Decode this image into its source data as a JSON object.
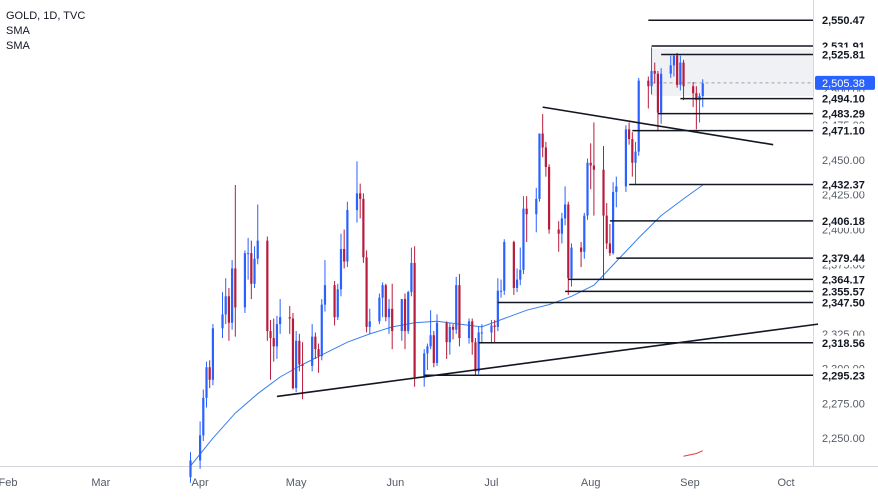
{
  "legend": {
    "symbol": "GOLD, 1D, TVC",
    "indicator_1": "SMA",
    "indicator_2": "SMA"
  },
  "chart_data": {
    "type": "candlestick",
    "title": "GOLD, 1D, TVC",
    "xlabel": "",
    "ylabel": "",
    "ylim": [
      2230,
      2565
    ],
    "y_ticks": [
      "2,250.00",
      "2,275.00",
      "2,300.00",
      "2,325.00",
      "2,350.00",
      "2,375.00",
      "2,400.00",
      "2,425.00",
      "2,450.00",
      "2,475.00",
      "2,500.00",
      "2,525.00",
      "2,550.00"
    ],
    "x_labels": [
      "Feb",
      "Mar",
      "Apr",
      "May",
      "Jun",
      "Jul",
      "Aug",
      "Sep",
      "Oct"
    ],
    "current_price": "2,505.38",
    "price_labels": [
      "2,550.47",
      "2,531.91",
      "2,525.81",
      "2,505.38",
      "2,494.10",
      "2,483.29",
      "2,471.10",
      "2,432.37",
      "2,406.18",
      "2,379.44",
      "2,364.17",
      "2,355.57",
      "2,347.50",
      "2,318.56",
      "2,295.23"
    ],
    "levels": [
      {
        "label": "2,550.47",
        "value": 2550.47,
        "x_from": "2024-08-19"
      },
      {
        "label": "2,531.91",
        "value": 2531.91,
        "x_from": "2024-08-20"
      },
      {
        "label": "2,525.81",
        "value": 2525.81,
        "x_from": "2024-08-23"
      },
      {
        "label": "2,494.10",
        "value": 2494.1,
        "x_from": "2024-08-29"
      },
      {
        "label": "2,483.29",
        "value": 2483.29,
        "x_from": "2024-08-22"
      },
      {
        "label": "2,471.10",
        "value": 2471.1,
        "x_from": "2024-08-14"
      },
      {
        "label": "2,432.37",
        "value": 2432.37,
        "x_from": "2024-08-13"
      },
      {
        "label": "2,406.18",
        "value": 2406.18,
        "x_from": "2024-08-07"
      },
      {
        "label": "2,379.44",
        "value": 2379.44,
        "x_from": "2024-08-09"
      },
      {
        "label": "2,364.17",
        "value": 2364.17,
        "x_from": "2024-07-25"
      },
      {
        "label": "2,355.57",
        "value": 2355.57,
        "x_from": "2024-07-24"
      },
      {
        "label": "2,347.50",
        "value": 2347.5,
        "x_from": "2024-07-03"
      },
      {
        "label": "2,318.56",
        "value": 2318.56,
        "x_from": "2024-06-27"
      },
      {
        "label": "2,295.23",
        "value": 2295.23,
        "x_from": "2024-06-10"
      }
    ],
    "trendlines": [
      {
        "from": {
          "date": "2024-04-25",
          "price": 2280
        },
        "to": {
          "date": "2024-10-11",
          "price": 2332
        }
      },
      {
        "from": {
          "date": "2024-07-17",
          "price": 2488
        },
        "to": {
          "date": "2024-09-27",
          "price": 2461
        }
      }
    ],
    "consolidation_box": {
      "x_from": "2024-08-20",
      "x_to": "2024-10-07",
      "price_top": 2530,
      "price_bottom": 2496
    },
    "colors": {
      "up": "#2962ff",
      "down": "#b71c3c",
      "sma_1": "#3a7ef0",
      "sma_2": "#e04040",
      "price_label_bg": "#2962ff"
    },
    "candles": [
      {
        "d": "2024-03-29",
        "o": 2222,
        "h": 2240,
        "l": 2218,
        "c": 2234
      },
      {
        "d": "2024-04-01",
        "o": 2234,
        "h": 2262,
        "l": 2228,
        "c": 2252
      },
      {
        "d": "2024-04-02",
        "o": 2252,
        "h": 2285,
        "l": 2248,
        "c": 2279
      },
      {
        "d": "2024-04-03",
        "o": 2279,
        "h": 2305,
        "l": 2272,
        "c": 2301
      },
      {
        "d": "2024-04-04",
        "o": 2301,
        "h": 2306,
        "l": 2286,
        "c": 2292
      },
      {
        "d": "2024-04-05",
        "o": 2292,
        "h": 2332,
        "l": 2288,
        "c": 2329
      },
      {
        "d": "2024-04-08",
        "o": 2329,
        "h": 2355,
        "l": 2322,
        "c": 2339
      },
      {
        "d": "2024-04-09",
        "o": 2339,
        "h": 2365,
        "l": 2332,
        "c": 2352
      },
      {
        "d": "2024-04-10",
        "o": 2352,
        "h": 2358,
        "l": 2320,
        "c": 2333
      },
      {
        "d": "2024-04-11",
        "o": 2333,
        "h": 2378,
        "l": 2328,
        "c": 2372
      },
      {
        "d": "2024-04-12",
        "o": 2372,
        "h": 2432,
        "l": 2323,
        "c": 2344
      },
      {
        "d": "2024-04-15",
        "o": 2344,
        "h": 2385,
        "l": 2340,
        "c": 2383
      },
      {
        "d": "2024-04-16",
        "o": 2383,
        "h": 2394,
        "l": 2364,
        "c": 2383
      },
      {
        "d": "2024-04-17",
        "o": 2383,
        "h": 2392,
        "l": 2350,
        "c": 2361
      },
      {
        "d": "2024-04-18",
        "o": 2361,
        "h": 2388,
        "l": 2358,
        "c": 2379
      },
      {
        "d": "2024-04-19",
        "o": 2379,
        "h": 2418,
        "l": 2375,
        "c": 2392
      },
      {
        "d": "2024-04-22",
        "o": 2392,
        "h": 2395,
        "l": 2320,
        "c": 2327
      },
      {
        "d": "2024-04-23",
        "o": 2327,
        "h": 2335,
        "l": 2292,
        "c": 2322
      },
      {
        "d": "2024-04-24",
        "o": 2322,
        "h": 2336,
        "l": 2305,
        "c": 2316
      },
      {
        "d": "2024-04-25",
        "o": 2316,
        "h": 2338,
        "l": 2307,
        "c": 2332
      },
      {
        "d": "2024-04-26",
        "o": 2332,
        "h": 2350,
        "l": 2325,
        "c": 2337
      },
      {
        "d": "2024-04-29",
        "o": 2337,
        "h": 2345,
        "l": 2325,
        "c": 2336
      },
      {
        "d": "2024-04-30",
        "o": 2336,
        "h": 2340,
        "l": 2285,
        "c": 2286
      },
      {
        "d": "2024-05-01",
        "o": 2286,
        "h": 2327,
        "l": 2283,
        "c": 2320
      },
      {
        "d": "2024-05-02",
        "o": 2320,
        "h": 2325,
        "l": 2298,
        "c": 2303
      },
      {
        "d": "2024-05-03",
        "o": 2303,
        "h": 2319,
        "l": 2278,
        "c": 2302
      },
      {
        "d": "2024-05-06",
        "o": 2302,
        "h": 2332,
        "l": 2298,
        "c": 2323
      },
      {
        "d": "2024-05-07",
        "o": 2323,
        "h": 2326,
        "l": 2307,
        "c": 2314
      },
      {
        "d": "2024-05-08",
        "o": 2314,
        "h": 2318,
        "l": 2297,
        "c": 2309
      },
      {
        "d": "2024-05-09",
        "o": 2309,
        "h": 2350,
        "l": 2306,
        "c": 2346
      },
      {
        "d": "2024-05-10",
        "o": 2346,
        "h": 2378,
        "l": 2341,
        "c": 2360
      },
      {
        "d": "2024-05-13",
        "o": 2360,
        "h": 2363,
        "l": 2331,
        "c": 2337
      },
      {
        "d": "2024-05-14",
        "o": 2337,
        "h": 2361,
        "l": 2335,
        "c": 2357
      },
      {
        "d": "2024-05-15",
        "o": 2357,
        "h": 2397,
        "l": 2352,
        "c": 2386
      },
      {
        "d": "2024-05-16",
        "o": 2386,
        "h": 2400,
        "l": 2372,
        "c": 2377
      },
      {
        "d": "2024-05-17",
        "o": 2377,
        "h": 2420,
        "l": 2373,
        "c": 2414
      },
      {
        "d": "2024-05-20",
        "o": 2414,
        "h": 2449,
        "l": 2405,
        "c": 2426
      },
      {
        "d": "2024-05-21",
        "o": 2426,
        "h": 2433,
        "l": 2408,
        "c": 2422
      },
      {
        "d": "2024-05-22",
        "o": 2422,
        "h": 2426,
        "l": 2376,
        "c": 2380
      },
      {
        "d": "2024-05-23",
        "o": 2380,
        "h": 2385,
        "l": 2326,
        "c": 2330
      },
      {
        "d": "2024-05-24",
        "o": 2330,
        "h": 2343,
        "l": 2325,
        "c": 2334
      },
      {
        "d": "2024-05-27",
        "o": 2334,
        "h": 2354,
        "l": 2332,
        "c": 2351
      },
      {
        "d": "2024-05-28",
        "o": 2351,
        "h": 2362,
        "l": 2337,
        "c": 2360
      },
      {
        "d": "2024-05-29",
        "o": 2360,
        "h": 2361,
        "l": 2334,
        "c": 2337
      },
      {
        "d": "2024-05-30",
        "o": 2337,
        "h": 2350,
        "l": 2325,
        "c": 2343
      },
      {
        "d": "2024-05-31",
        "o": 2343,
        "h": 2361,
        "l": 2314,
        "c": 2327
      },
      {
        "d": "2024-06-03",
        "o": 2327,
        "h": 2350,
        "l": 2320,
        "c": 2350
      },
      {
        "d": "2024-06-04",
        "o": 2350,
        "h": 2354,
        "l": 2314,
        "c": 2327
      },
      {
        "d": "2024-06-05",
        "o": 2327,
        "h": 2356,
        "l": 2325,
        "c": 2355
      },
      {
        "d": "2024-06-06",
        "o": 2355,
        "h": 2387,
        "l": 2352,
        "c": 2376
      },
      {
        "d": "2024-06-07",
        "o": 2376,
        "h": 2388,
        "l": 2287,
        "c": 2294
      },
      {
        "d": "2024-06-10",
        "o": 2294,
        "h": 2314,
        "l": 2287,
        "c": 2311
      },
      {
        "d": "2024-06-11",
        "o": 2311,
        "h": 2318,
        "l": 2299,
        "c": 2316
      },
      {
        "d": "2024-06-12",
        "o": 2316,
        "h": 2342,
        "l": 2314,
        "c": 2324
      },
      {
        "d": "2024-06-13",
        "o": 2324,
        "h": 2327,
        "l": 2301,
        "c": 2304
      },
      {
        "d": "2024-06-14",
        "o": 2304,
        "h": 2339,
        "l": 2302,
        "c": 2333
      },
      {
        "d": "2024-06-17",
        "o": 2333,
        "h": 2334,
        "l": 2307,
        "c": 2319
      },
      {
        "d": "2024-06-18",
        "o": 2319,
        "h": 2333,
        "l": 2310,
        "c": 2330
      },
      {
        "d": "2024-06-19",
        "o": 2330,
        "h": 2332,
        "l": 2321,
        "c": 2328
      },
      {
        "d": "2024-06-20",
        "o": 2328,
        "h": 2366,
        "l": 2325,
        "c": 2360
      },
      {
        "d": "2024-06-21",
        "o": 2360,
        "h": 2368,
        "l": 2316,
        "c": 2322
      },
      {
        "d": "2024-06-24",
        "o": 2322,
        "h": 2336,
        "l": 2318,
        "c": 2334
      },
      {
        "d": "2024-06-25",
        "o": 2334,
        "h": 2336,
        "l": 2310,
        "c": 2319
      },
      {
        "d": "2024-06-26",
        "o": 2319,
        "h": 2322,
        "l": 2295,
        "c": 2298
      },
      {
        "d": "2024-06-27",
        "o": 2298,
        "h": 2330,
        "l": 2296,
        "c": 2326
      },
      {
        "d": "2024-06-28",
        "o": 2326,
        "h": 2332,
        "l": 2318,
        "c": 2326
      },
      {
        "d": "2024-07-01",
        "o": 2326,
        "h": 2335,
        "l": 2318,
        "c": 2331
      },
      {
        "d": "2024-07-02",
        "o": 2331,
        "h": 2335,
        "l": 2319,
        "c": 2330
      },
      {
        "d": "2024-07-03",
        "o": 2330,
        "h": 2365,
        "l": 2327,
        "c": 2356
      },
      {
        "d": "2024-07-04",
        "o": 2356,
        "h": 2364,
        "l": 2351,
        "c": 2356
      },
      {
        "d": "2024-07-05",
        "o": 2356,
        "h": 2393,
        "l": 2353,
        "c": 2391
      },
      {
        "d": "2024-07-08",
        "o": 2391,
        "h": 2392,
        "l": 2353,
        "c": 2358
      },
      {
        "d": "2024-07-09",
        "o": 2358,
        "h": 2372,
        "l": 2355,
        "c": 2364
      },
      {
        "d": "2024-07-10",
        "o": 2364,
        "h": 2387,
        "l": 2360,
        "c": 2371
      },
      {
        "d": "2024-07-11",
        "o": 2371,
        "h": 2424,
        "l": 2368,
        "c": 2415
      },
      {
        "d": "2024-07-12",
        "o": 2415,
        "h": 2424,
        "l": 2391,
        "c": 2411
      },
      {
        "d": "2024-07-15",
        "o": 2411,
        "h": 2430,
        "l": 2398,
        "c": 2422
      },
      {
        "d": "2024-07-16",
        "o": 2422,
        "h": 2469,
        "l": 2420,
        "c": 2469
      },
      {
        "d": "2024-07-17",
        "o": 2469,
        "h": 2483,
        "l": 2452,
        "c": 2459
      },
      {
        "d": "2024-07-18",
        "o": 2459,
        "h": 2463,
        "l": 2438,
        "c": 2445
      },
      {
        "d": "2024-07-19",
        "o": 2445,
        "h": 2447,
        "l": 2397,
        "c": 2400
      },
      {
        "d": "2024-07-22",
        "o": 2400,
        "h": 2406,
        "l": 2384,
        "c": 2397
      },
      {
        "d": "2024-07-23",
        "o": 2397,
        "h": 2412,
        "l": 2390,
        "c": 2408
      },
      {
        "d": "2024-07-24",
        "o": 2408,
        "h": 2431,
        "l": 2403,
        "c": 2418
      },
      {
        "d": "2024-07-25",
        "o": 2418,
        "h": 2420,
        "l": 2353,
        "c": 2365
      },
      {
        "d": "2024-07-26",
        "o": 2365,
        "h": 2390,
        "l": 2359,
        "c": 2387
      },
      {
        "d": "2024-07-29",
        "o": 2387,
        "h": 2391,
        "l": 2373,
        "c": 2384
      },
      {
        "d": "2024-07-30",
        "o": 2384,
        "h": 2412,
        "l": 2379,
        "c": 2410
      },
      {
        "d": "2024-07-31",
        "o": 2410,
        "h": 2451,
        "l": 2407,
        "c": 2448
      },
      {
        "d": "2024-08-01",
        "o": 2448,
        "h": 2462,
        "l": 2429,
        "c": 2446
      },
      {
        "d": "2024-08-02",
        "o": 2446,
        "h": 2477,
        "l": 2410,
        "c": 2443
      },
      {
        "d": "2024-08-05",
        "o": 2443,
        "h": 2460,
        "l": 2364,
        "c": 2410
      },
      {
        "d": "2024-08-06",
        "o": 2410,
        "h": 2419,
        "l": 2386,
        "c": 2390
      },
      {
        "d": "2024-08-07",
        "o": 2390,
        "h": 2404,
        "l": 2381,
        "c": 2383
      },
      {
        "d": "2024-08-08",
        "o": 2383,
        "h": 2434,
        "l": 2382,
        "c": 2427
      },
      {
        "d": "2024-08-09",
        "o": 2427,
        "h": 2438,
        "l": 2416,
        "c": 2431
      },
      {
        "d": "2024-08-12",
        "o": 2431,
        "h": 2475,
        "l": 2427,
        "c": 2472
      },
      {
        "d": "2024-08-13",
        "o": 2472,
        "h": 2477,
        "l": 2461,
        "c": 2465
      },
      {
        "d": "2024-08-14",
        "o": 2465,
        "h": 2470,
        "l": 2438,
        "c": 2448
      },
      {
        "d": "2024-08-15",
        "o": 2448,
        "h": 2463,
        "l": 2432,
        "c": 2456
      },
      {
        "d": "2024-08-16",
        "o": 2456,
        "h": 2509,
        "l": 2453,
        "c": 2507
      },
      {
        "d": "2024-08-19",
        "o": 2507,
        "h": 2510,
        "l": 2487,
        "c": 2503
      },
      {
        "d": "2024-08-20",
        "o": 2503,
        "h": 2531,
        "l": 2497,
        "c": 2514
      },
      {
        "d": "2024-08-21",
        "o": 2514,
        "h": 2520,
        "l": 2505,
        "c": 2512
      },
      {
        "d": "2024-08-22",
        "o": 2512,
        "h": 2514,
        "l": 2471,
        "c": 2484
      },
      {
        "d": "2024-08-23",
        "o": 2484,
        "h": 2516,
        "l": 2476,
        "c": 2512
      },
      {
        "d": "2024-08-26",
        "o": 2512,
        "h": 2525,
        "l": 2509,
        "c": 2518
      },
      {
        "d": "2024-08-27",
        "o": 2518,
        "h": 2525,
        "l": 2510,
        "c": 2525
      },
      {
        "d": "2024-08-28",
        "o": 2525,
        "h": 2527,
        "l": 2502,
        "c": 2504
      },
      {
        "d": "2024-08-29",
        "o": 2504,
        "h": 2525,
        "l": 2500,
        "c": 2520
      },
      {
        "d": "2024-08-30",
        "o": 2520,
        "h": 2522,
        "l": 2493,
        "c": 2503
      },
      {
        "d": "2024-09-02",
        "o": 2503,
        "h": 2506,
        "l": 2488,
        "c": 2498
      },
      {
        "d": "2024-09-03",
        "o": 2498,
        "h": 2503,
        "l": 2472,
        "c": 2493
      },
      {
        "d": "2024-09-04",
        "o": 2493,
        "h": 2498,
        "l": 2477,
        "c": 2496
      },
      {
        "d": "2024-09-05",
        "o": 2496,
        "h": 2508,
        "l": 2488,
        "c": 2505
      }
    ],
    "sma_1": [
      [
        "2024-03-29",
        2230
      ],
      [
        "2024-04-05",
        2250
      ],
      [
        "2024-04-12",
        2268
      ],
      [
        "2024-04-19",
        2282
      ],
      [
        "2024-04-26",
        2294
      ],
      [
        "2024-05-03",
        2303
      ],
      [
        "2024-05-10",
        2311
      ],
      [
        "2024-05-17",
        2319
      ],
      [
        "2024-05-24",
        2325
      ],
      [
        "2024-05-31",
        2330
      ],
      [
        "2024-06-07",
        2333
      ],
      [
        "2024-06-14",
        2334
      ],
      [
        "2024-06-21",
        2332
      ],
      [
        "2024-06-28",
        2330
      ],
      [
        "2024-07-05",
        2336
      ],
      [
        "2024-07-12",
        2342
      ],
      [
        "2024-07-19",
        2346
      ],
      [
        "2024-07-26",
        2352
      ],
      [
        "2024-08-02",
        2360
      ],
      [
        "2024-08-09",
        2377
      ],
      [
        "2024-08-16",
        2394
      ],
      [
        "2024-08-23",
        2410
      ],
      [
        "2024-08-30",
        2422
      ],
      [
        "2024-09-05",
        2432
      ]
    ],
    "sma_2": [
      [
        "2024-08-30",
        2237
      ],
      [
        "2024-09-03",
        2239
      ],
      [
        "2024-09-05",
        2241
      ]
    ]
  }
}
